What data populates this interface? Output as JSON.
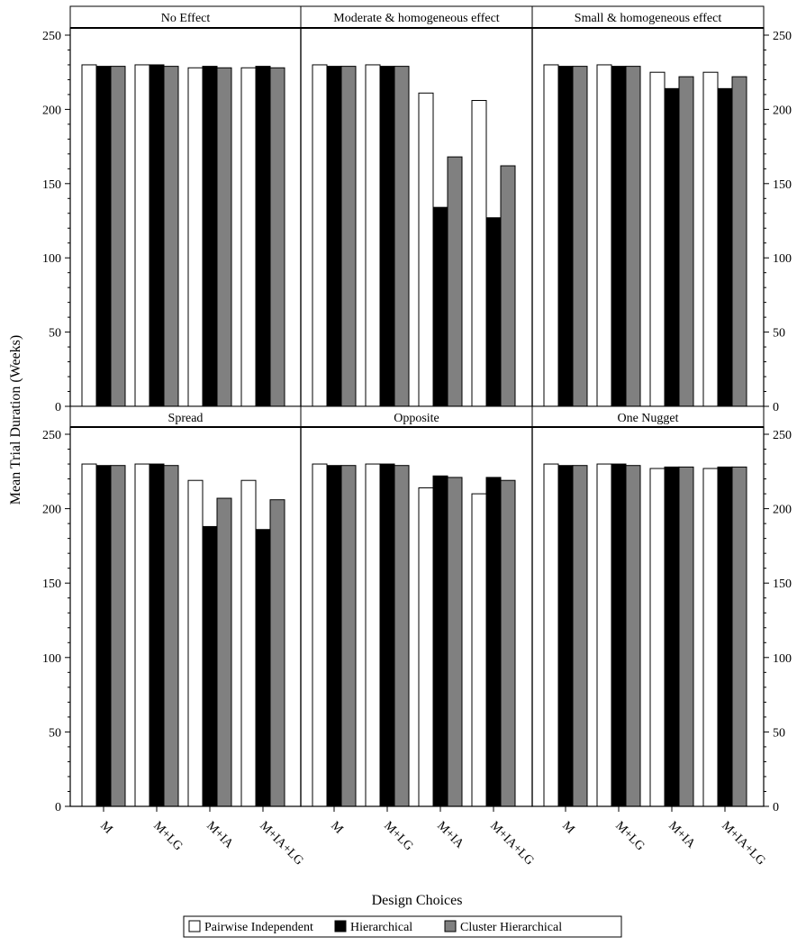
{
  "chart_data": {
    "type": "bar",
    "ylabel": "Mean Trial Duration (Weeks)",
    "xlabel": "Design Choices",
    "ylim": [
      0,
      250
    ],
    "yticks": [
      "0",
      "50",
      "100",
      "150",
      "200",
      "250"
    ],
    "categories": [
      "M",
      "M+LG",
      "M+IA",
      "M+IA+LG"
    ],
    "legend_position": "bottom",
    "series_styles": [
      {
        "name": "Pairwise Independent",
        "color": "#ffffff"
      },
      {
        "name": "Hierarchical",
        "color": "#000000"
      },
      {
        "name": "Cluster Hierarchical",
        "color": "#808080"
      }
    ],
    "panels": [
      {
        "title": "No Effect",
        "series": [
          {
            "name": "Pairwise Independent",
            "values": [
              230,
              230,
              228,
              228
            ]
          },
          {
            "name": "Hierarchical",
            "values": [
              229,
              230,
              229,
              229
            ]
          },
          {
            "name": "Cluster Hierarchical",
            "values": [
              229,
              229,
              228,
              228
            ]
          }
        ]
      },
      {
        "title": "Moderate & homogeneous effect",
        "series": [
          {
            "name": "Pairwise Independent",
            "values": [
              230,
              230,
              211,
              206
            ]
          },
          {
            "name": "Hierarchical",
            "values": [
              229,
              229,
              134,
              127
            ]
          },
          {
            "name": "Cluster Hierarchical",
            "values": [
              229,
              229,
              168,
              162
            ]
          }
        ]
      },
      {
        "title": "Small & homogeneous effect",
        "series": [
          {
            "name": "Pairwise Independent",
            "values": [
              230,
              230,
              225,
              225
            ]
          },
          {
            "name": "Hierarchical",
            "values": [
              229,
              229,
              214,
              214
            ]
          },
          {
            "name": "Cluster Hierarchical",
            "values": [
              229,
              229,
              222,
              222
            ]
          }
        ]
      },
      {
        "title": "Spread",
        "series": [
          {
            "name": "Pairwise Independent",
            "values": [
              230,
              230,
              219,
              219
            ]
          },
          {
            "name": "Hierarchical",
            "values": [
              229,
              230,
              188,
              186
            ]
          },
          {
            "name": "Cluster Hierarchical",
            "values": [
              229,
              229,
              207,
              206
            ]
          }
        ]
      },
      {
        "title": "Opposite",
        "series": [
          {
            "name": "Pairwise Independent",
            "values": [
              230,
              230,
              214,
              210
            ]
          },
          {
            "name": "Hierarchical",
            "values": [
              229,
              230,
              222,
              221
            ]
          },
          {
            "name": "Cluster Hierarchical",
            "values": [
              229,
              229,
              221,
              219
            ]
          }
        ]
      },
      {
        "title": "One Nugget",
        "series": [
          {
            "name": "Pairwise Independent",
            "values": [
              230,
              230,
              227,
              227
            ]
          },
          {
            "name": "Hierarchical",
            "values": [
              229,
              230,
              228,
              228
            ]
          },
          {
            "name": "Cluster Hierarchical",
            "values": [
              229,
              229,
              228,
              228
            ]
          }
        ]
      }
    ]
  }
}
